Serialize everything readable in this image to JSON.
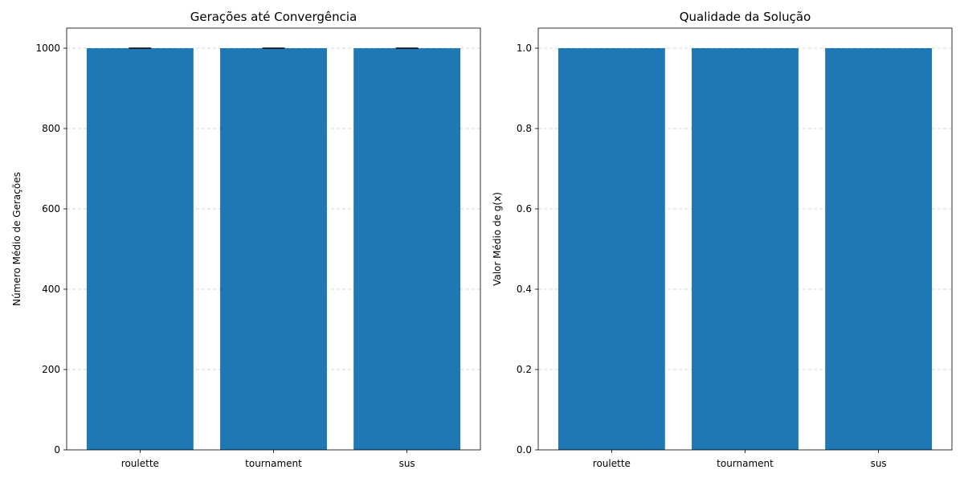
{
  "chart_data": [
    {
      "type": "bar",
      "title": "Gerações até Convergência",
      "xlabel": "",
      "ylabel": "Número Médio de Gerações",
      "categories": [
        "roulette",
        "tournament",
        "sus"
      ],
      "values": [
        1000,
        1000,
        1000
      ],
      "error": [
        0,
        0,
        0
      ],
      "ylim": [
        0,
        1050
      ],
      "yticks": [
        0,
        200,
        400,
        600,
        800,
        1000
      ],
      "ytick_labels": [
        "0",
        "200",
        "400",
        "600",
        "800",
        "1000"
      ],
      "grid": "y-dashed",
      "bar_color": "#1f77b4"
    },
    {
      "type": "bar",
      "title": "Qualidade da Solução",
      "xlabel": "",
      "ylabel": "Valor Médio de g(x)",
      "categories": [
        "roulette",
        "tournament",
        "sus"
      ],
      "values": [
        1.0,
        1.0,
        1.0
      ],
      "ylim": [
        0,
        1.05
      ],
      "yticks": [
        0,
        0.2,
        0.4,
        0.6,
        0.8,
        1.0
      ],
      "ytick_labels": [
        "0.0",
        "0.2",
        "0.4",
        "0.6",
        "0.8",
        "1.0"
      ],
      "grid": "y-dashed",
      "bar_color": "#1f77b4"
    }
  ]
}
